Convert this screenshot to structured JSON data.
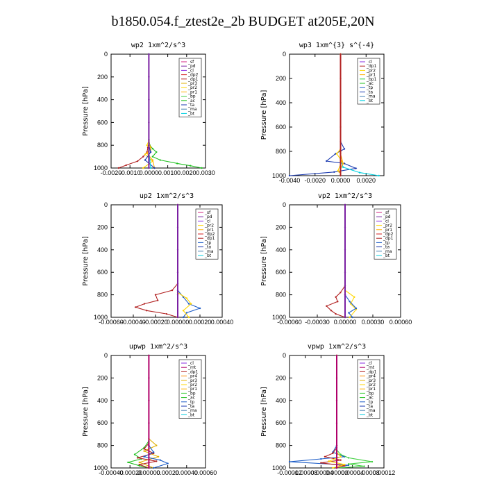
{
  "page": {
    "title": "b1850.054.f_ztest2e_2b  BUDGET at205E,20N"
  },
  "colors": {
    "sf": "#d42080",
    "pd": "#7a1fa2",
    "cl": "#8a2be2",
    "dp1": "#b22222",
    "dp2": "#d42020",
    "mt": "#b0006a",
    "pr1": "#ffb000",
    "pr2": "#ffd700",
    "pr3": "#e0b000",
    "pr4": "#ff8c00",
    "bp": "#40d040",
    "bp1": "#2ecc40",
    "ac": "#20c020",
    "tp": "#1e5ec8",
    "ta": "#1a3ab0",
    "ma": "#4682b4",
    "bt": "#00d0e0"
  },
  "chart_data": [
    {
      "type": "line",
      "title": "wp2  1xm^2/s^3",
      "ylabel": "Pressure [hPa]",
      "ylim": [
        1000,
        0
      ],
      "xlim": [
        -0.002,
        0.003
      ],
      "xticks": [
        -0.002,
        -0.001,
        0.0,
        0.001,
        0.002,
        0.003
      ],
      "xtick_labels": [
        "-0.0020",
        "-0.0010",
        "0.0000",
        "0.0010",
        "0.0020",
        "0.0030"
      ],
      "yticks": [
        0,
        200,
        400,
        600,
        800,
        1000
      ],
      "ytick_labels": [
        "0",
        "200",
        "400",
        "600",
        "800",
        "1000"
      ],
      "legend": [
        "_sf",
        "_pd",
        "_cl",
        "_dp2",
        "_dp1",
        "_pr3",
        "_pr2",
        "_pr1",
        "_bp",
        "_ac",
        "_ta",
        "_ma",
        "_bt"
      ],
      "legend_keys": [
        "sf",
        "pd",
        "cl",
        "dp2",
        "dp1",
        "pr3",
        "pr2",
        "pr1",
        "bp",
        "ac",
        "ta",
        "ma",
        "bt"
      ],
      "legend_position": "top-right",
      "series": [
        {
          "name": "_ac",
          "key": "ac",
          "x": [
            0,
            0,
            5e-05,
            0.0002,
            0.0004,
            0.0002,
            0.0006,
            0.0015,
            0.0022,
            0.0028
          ],
          "y": [
            0,
            750,
            800,
            830,
            860,
            900,
            930,
            960,
            980,
            1000
          ]
        },
        {
          "name": "_dp1",
          "key": "dp1",
          "x": [
            0,
            0,
            -5e-05,
            -0.0001,
            -0.0003,
            -0.0006,
            -0.0012,
            -0.0016
          ],
          "y": [
            0,
            780,
            820,
            860,
            900,
            940,
            975,
            1000
          ]
        },
        {
          "name": "_pr2",
          "key": "pr2",
          "x": [
            0,
            0,
            -0.0001,
            0.0001,
            -0.0002,
            0.0002,
            -0.0003
          ],
          "y": [
            0,
            760,
            800,
            840,
            880,
            940,
            1000
          ]
        },
        {
          "name": "_pr1",
          "key": "pr1",
          "x": [
            0,
            0,
            0.0001,
            -0.0001,
            0.0002,
            0.0003
          ],
          "y": [
            0,
            780,
            820,
            870,
            930,
            1000
          ]
        },
        {
          "name": "_ta",
          "key": "ta",
          "x": [
            0,
            0,
            0.0001,
            -0.0002,
            0.0003
          ],
          "y": [
            0,
            800,
            860,
            930,
            1000
          ]
        },
        {
          "name": "_bt",
          "key": "bt",
          "x": [
            0,
            0,
            5e-05,
            0.0001
          ],
          "y": [
            0,
            850,
            930,
            1000
          ]
        },
        {
          "name": "_pd",
          "key": "pd",
          "x": [
            0,
            0,
            0,
            0,
            0,
            0
          ],
          "y": [
            0,
            200,
            400,
            600,
            800,
            1000
          ]
        }
      ]
    },
    {
      "type": "line",
      "title": "wp3  1xm^{3} s^{-4}",
      "ylabel": "Pressure [hPa]",
      "ylim": [
        1000,
        0
      ],
      "xlim": [
        -0.004,
        0.0034
      ],
      "xticks": [
        -0.004,
        -0.002,
        0.0,
        0.002
      ],
      "xtick_labels": [
        "-0.0040",
        "-0.0020",
        "0.0000",
        "0.0020"
      ],
      "yticks": [
        0,
        200,
        400,
        600,
        800,
        1000
      ],
      "ytick_labels": [
        "0",
        "200",
        "400",
        "600",
        "800",
        "1000"
      ],
      "legend": [
        "_cl",
        "_dp1",
        "_pr2",
        "_pr1",
        "_bp1",
        "_ac",
        "_tp",
        "_ta",
        "_ma",
        "_bt"
      ],
      "legend_keys": [
        "cl",
        "dp1",
        "pr2",
        "pr1",
        "bp1",
        "ac",
        "tp",
        "ta",
        "ma",
        "bt"
      ],
      "legend_position": "top-right",
      "series": [
        {
          "name": "_ta",
          "key": "ta",
          "x": [
            0,
            0,
            0.0003,
            -0.0004,
            -0.0011,
            0.0003,
            0.0012,
            -0.0005,
            -0.004
          ],
          "y": [
            0,
            720,
            780,
            820,
            880,
            900,
            940,
            970,
            1000
          ]
        },
        {
          "name": "_bt",
          "key": "bt",
          "x": [
            0,
            0,
            0.0002,
            0.0015,
            0.003
          ],
          "y": [
            0,
            860,
            930,
            975,
            1000
          ]
        },
        {
          "name": "_pr2",
          "key": "pr2",
          "x": [
            0,
            0,
            -0.0003,
            0.0001,
            -0.0002
          ],
          "y": [
            0,
            780,
            820,
            880,
            960
          ]
        },
        {
          "name": "_pr1",
          "key": "pr1",
          "x": [
            0,
            0,
            0.0002,
            -0.0001
          ],
          "y": [
            0,
            820,
            900,
            970
          ]
        },
        {
          "name": "_dp1",
          "key": "dp1",
          "x": [
            0,
            0,
            0,
            0,
            0,
            0
          ],
          "y": [
            0,
            200,
            400,
            600,
            800,
            1000
          ]
        }
      ]
    },
    {
      "type": "line",
      "title": "up2  1xm^2/s^3",
      "ylabel": "Pressure [hPa]",
      "ylim": [
        1000,
        0
      ],
      "xlim": [
        -0.0006,
        0.0004
      ],
      "xticks": [
        -0.0006,
        -0.0004,
        -0.0002,
        0.0,
        0.0002,
        0.0004
      ],
      "xtick_labels": [
        "-0.00060",
        "-0.00040",
        "-0.00020",
        "0.00000",
        "0.00020",
        "0.00040"
      ],
      "yticks": [
        0,
        200,
        400,
        600,
        800,
        1000
      ],
      "ytick_labels": [
        "0",
        "200",
        "400",
        "600",
        "800",
        "1000"
      ],
      "legend": [
        "_sf",
        "_pd",
        "_cl",
        "_pr2",
        "_pr1",
        "_dp2",
        "_dp1",
        "_tp",
        "_ta",
        "_ma",
        "_bt"
      ],
      "legend_keys": [
        "sf",
        "pd",
        "cl",
        "pr2",
        "pr1",
        "dp2",
        "dp1",
        "tp",
        "ta",
        "ma",
        "bt"
      ],
      "legend_position": "top-right",
      "series": [
        {
          "name": "_dp1",
          "key": "dp1",
          "x": [
            0,
            0,
            -5e-05,
            -0.0002,
            -0.00018,
            -0.0003,
            -0.00038,
            -0.00028,
            -0.0001,
            0
          ],
          "y": [
            0,
            700,
            760,
            800,
            850,
            880,
            910,
            940,
            970,
            1000
          ]
        },
        {
          "name": "_tp",
          "key": "tp",
          "x": [
            0,
            0,
            5e-05,
            0.0001,
            0.0002,
            8e-05,
            5e-05
          ],
          "y": [
            0,
            760,
            820,
            880,
            920,
            960,
            1000
          ]
        },
        {
          "name": "_pr2",
          "key": "pr2",
          "x": [
            0,
            0,
            8e-05,
            0.00012,
            5e-05,
            0.0001
          ],
          "y": [
            0,
            780,
            830,
            880,
            940,
            1000
          ]
        },
        {
          "name": "_pd",
          "key": "pd",
          "x": [
            0,
            0,
            0,
            0,
            0,
            0
          ],
          "y": [
            0,
            200,
            400,
            600,
            800,
            1000
          ]
        }
      ]
    },
    {
      "type": "line",
      "title": "vp2  1xm^2/s^3",
      "ylabel": "Pressure [hPa]",
      "ylim": [
        1000,
        0
      ],
      "xlim": [
        -0.0006,
        0.0006
      ],
      "xticks": [
        -0.0006,
        -0.0003,
        0.0,
        0.0003,
        0.0006
      ],
      "xtick_labels": [
        "-0.00060",
        "-0.00030",
        "0.00000",
        "0.00030",
        "0.00060"
      ],
      "yticks": [
        0,
        200,
        400,
        600,
        800,
        1000
      ],
      "ytick_labels": [
        "0",
        "200",
        "400",
        "600",
        "800",
        "1000"
      ],
      "legend": [
        "_sf",
        "_pd",
        "_cl",
        "_pr2",
        "_pr1",
        "_dp2",
        "_dp1",
        "_tp",
        "_ta",
        "_ma",
        "_bt"
      ],
      "legend_keys": [
        "sf",
        "pd",
        "cl",
        "pr2",
        "pr1",
        "dp2",
        "dp1",
        "tp",
        "ta",
        "ma",
        "bt"
      ],
      "legend_position": "top-right",
      "series": [
        {
          "name": "_dp1",
          "key": "dp1",
          "x": [
            0,
            0,
            -5e-05,
            -0.0001,
            -8e-05,
            -0.0002,
            -0.00015,
            -0.0001,
            0
          ],
          "y": [
            0,
            720,
            780,
            820,
            860,
            900,
            940,
            970,
            1000
          ]
        },
        {
          "name": "_pr2",
          "key": "pr2",
          "x": [
            0,
            0,
            0.0001,
            6e-05,
            0.00012,
            5e-05
          ],
          "y": [
            0,
            760,
            820,
            880,
            930,
            1000
          ]
        },
        {
          "name": "_tp",
          "key": "tp",
          "x": [
            0,
            0,
            5e-05,
            0.00012,
            4e-05,
            8e-05
          ],
          "y": [
            0,
            800,
            860,
            920,
            960,
            1000
          ]
        },
        {
          "name": "_pd",
          "key": "pd",
          "x": [
            0,
            0,
            0,
            0,
            0,
            0
          ],
          "y": [
            0,
            200,
            400,
            600,
            800,
            1000
          ]
        }
      ]
    },
    {
      "type": "line",
      "title": "upwp  1xm^2/s^3",
      "ylabel": "Pressure [hPa]",
      "ylim": [
        1000,
        0
      ],
      "xlim": [
        -0.0004,
        0.0006
      ],
      "xticks": [
        -0.0004,
        -0.0002,
        0.0,
        0.0002,
        0.0004,
        0.0006
      ],
      "xtick_labels": [
        "-0.00040",
        "-0.00020",
        "0.00000",
        "0.00020",
        "0.00040",
        "0.00060"
      ],
      "yticks": [
        0,
        200,
        400,
        600,
        800,
        1000
      ],
      "ytick_labels": [
        "0",
        "200",
        "400",
        "600",
        "800",
        "1000"
      ],
      "legend": [
        "_cl",
        "_mt",
        "_dp1",
        "_pr4",
        "_pr3",
        "_pr2",
        "_pr1",
        "_bp",
        "_ac",
        "_tp",
        "_ta",
        "_ma",
        "_bt"
      ],
      "legend_keys": [
        "cl",
        "mt",
        "dp1",
        "pr4",
        "pr3",
        "pr2",
        "pr1",
        "bp",
        "ac",
        "tp",
        "ta",
        "ma",
        "bt"
      ],
      "legend_position": "top-right",
      "series": [
        {
          "name": "_ac",
          "key": "ac",
          "x": [
            0,
            0,
            -5e-05,
            -0.00015,
            -8e-05,
            -0.00022,
            -0.0001,
            0
          ],
          "y": [
            0,
            760,
            820,
            880,
            920,
            950,
            980,
            1000
          ]
        },
        {
          "name": "_pr3",
          "key": "pr3",
          "x": [
            0,
            0,
            8e-05,
            -5e-05,
            0.0001,
            -0.0001,
            5e-05
          ],
          "y": [
            0,
            740,
            800,
            850,
            900,
            950,
            1000
          ]
        },
        {
          "name": "_dp1",
          "key": "dp1",
          "x": [
            0,
            0,
            -5e-05,
            5e-05,
            -0.00012,
            8e-05,
            -0.0001,
            0
          ],
          "y": [
            0,
            780,
            830,
            870,
            910,
            940,
            970,
            1000
          ]
        },
        {
          "name": "_tp",
          "key": "tp",
          "x": [
            0,
            0,
            5e-05,
            -5e-05,
            0.00012,
            0.0002,
            5e-05
          ],
          "y": [
            0,
            800,
            860,
            900,
            930,
            960,
            1000
          ]
        },
        {
          "name": "_mt",
          "key": "mt",
          "x": [
            0,
            0,
            0,
            0,
            0,
            0
          ],
          "y": [
            0,
            200,
            400,
            600,
            800,
            1000
          ]
        }
      ]
    },
    {
      "type": "line",
      "title": "vpwp  1xm^2/s^3",
      "ylabel": "Pressure [hPa]",
      "ylim": [
        1000,
        0
      ],
      "xlim": [
        -0.00012,
        0.00012
      ],
      "xticks": [
        -0.00012,
        -8e-05,
        -4e-05,
        0.0,
        4e-05,
        8e-05,
        0.00012
      ],
      "xtick_labels": [
        "-0.00012",
        "-0.00008",
        "-0.00004",
        "0.00000",
        "0.00004",
        "0.00008",
        "0.00012"
      ],
      "yticks": [
        0,
        200,
        400,
        600,
        800,
        1000
      ],
      "ytick_labels": [
        "0",
        "200",
        "400",
        "600",
        "800",
        "1000"
      ],
      "legend": [
        "_cl",
        "_mt",
        "_dp1",
        "_pr4",
        "_pr3",
        "_pr2",
        "_pr1",
        "_bp",
        "_ac",
        "_tp",
        "_ta",
        "_ma",
        "_bt"
      ],
      "legend_keys": [
        "cl",
        "mt",
        "dp1",
        "pr4",
        "pr3",
        "pr2",
        "pr1",
        "bp",
        "ac",
        "tp",
        "ta",
        "ma",
        "bt"
      ],
      "legend_position": "top-right",
      "series": [
        {
          "name": "_tp",
          "key": "tp",
          "x": [
            0,
            0,
            -1e-05,
            2e-05,
            -4e-05,
            -0.00012,
            3e-05,
            0
          ],
          "y": [
            0,
            800,
            860,
            900,
            920,
            945,
            975,
            1000
          ]
        },
        {
          "name": "_bp",
          "key": "bp",
          "x": [
            0,
            0,
            1e-05,
            3e-05,
            9e-05,
            3e-05,
            7e-05,
            0
          ],
          "y": [
            0,
            840,
            880,
            910,
            945,
            965,
            985,
            1000
          ]
        },
        {
          "name": "_dp1",
          "key": "dp1",
          "x": [
            0,
            0,
            -1e-05,
            -3e-05,
            1e-05,
            -4e-05,
            2e-05,
            0
          ],
          "y": [
            0,
            820,
            870,
            900,
            930,
            955,
            980,
            1000
          ]
        },
        {
          "name": "_pr2",
          "key": "pr2",
          "x": [
            0,
            0,
            1e-05,
            -2e-05,
            2e-05,
            -1e-05
          ],
          "y": [
            0,
            860,
            900,
            940,
            970,
            1000
          ]
        },
        {
          "name": "_mt",
          "key": "mt",
          "x": [
            0,
            0,
            0,
            0,
            0,
            0
          ],
          "y": [
            0,
            200,
            400,
            600,
            800,
            1000
          ]
        }
      ]
    }
  ]
}
